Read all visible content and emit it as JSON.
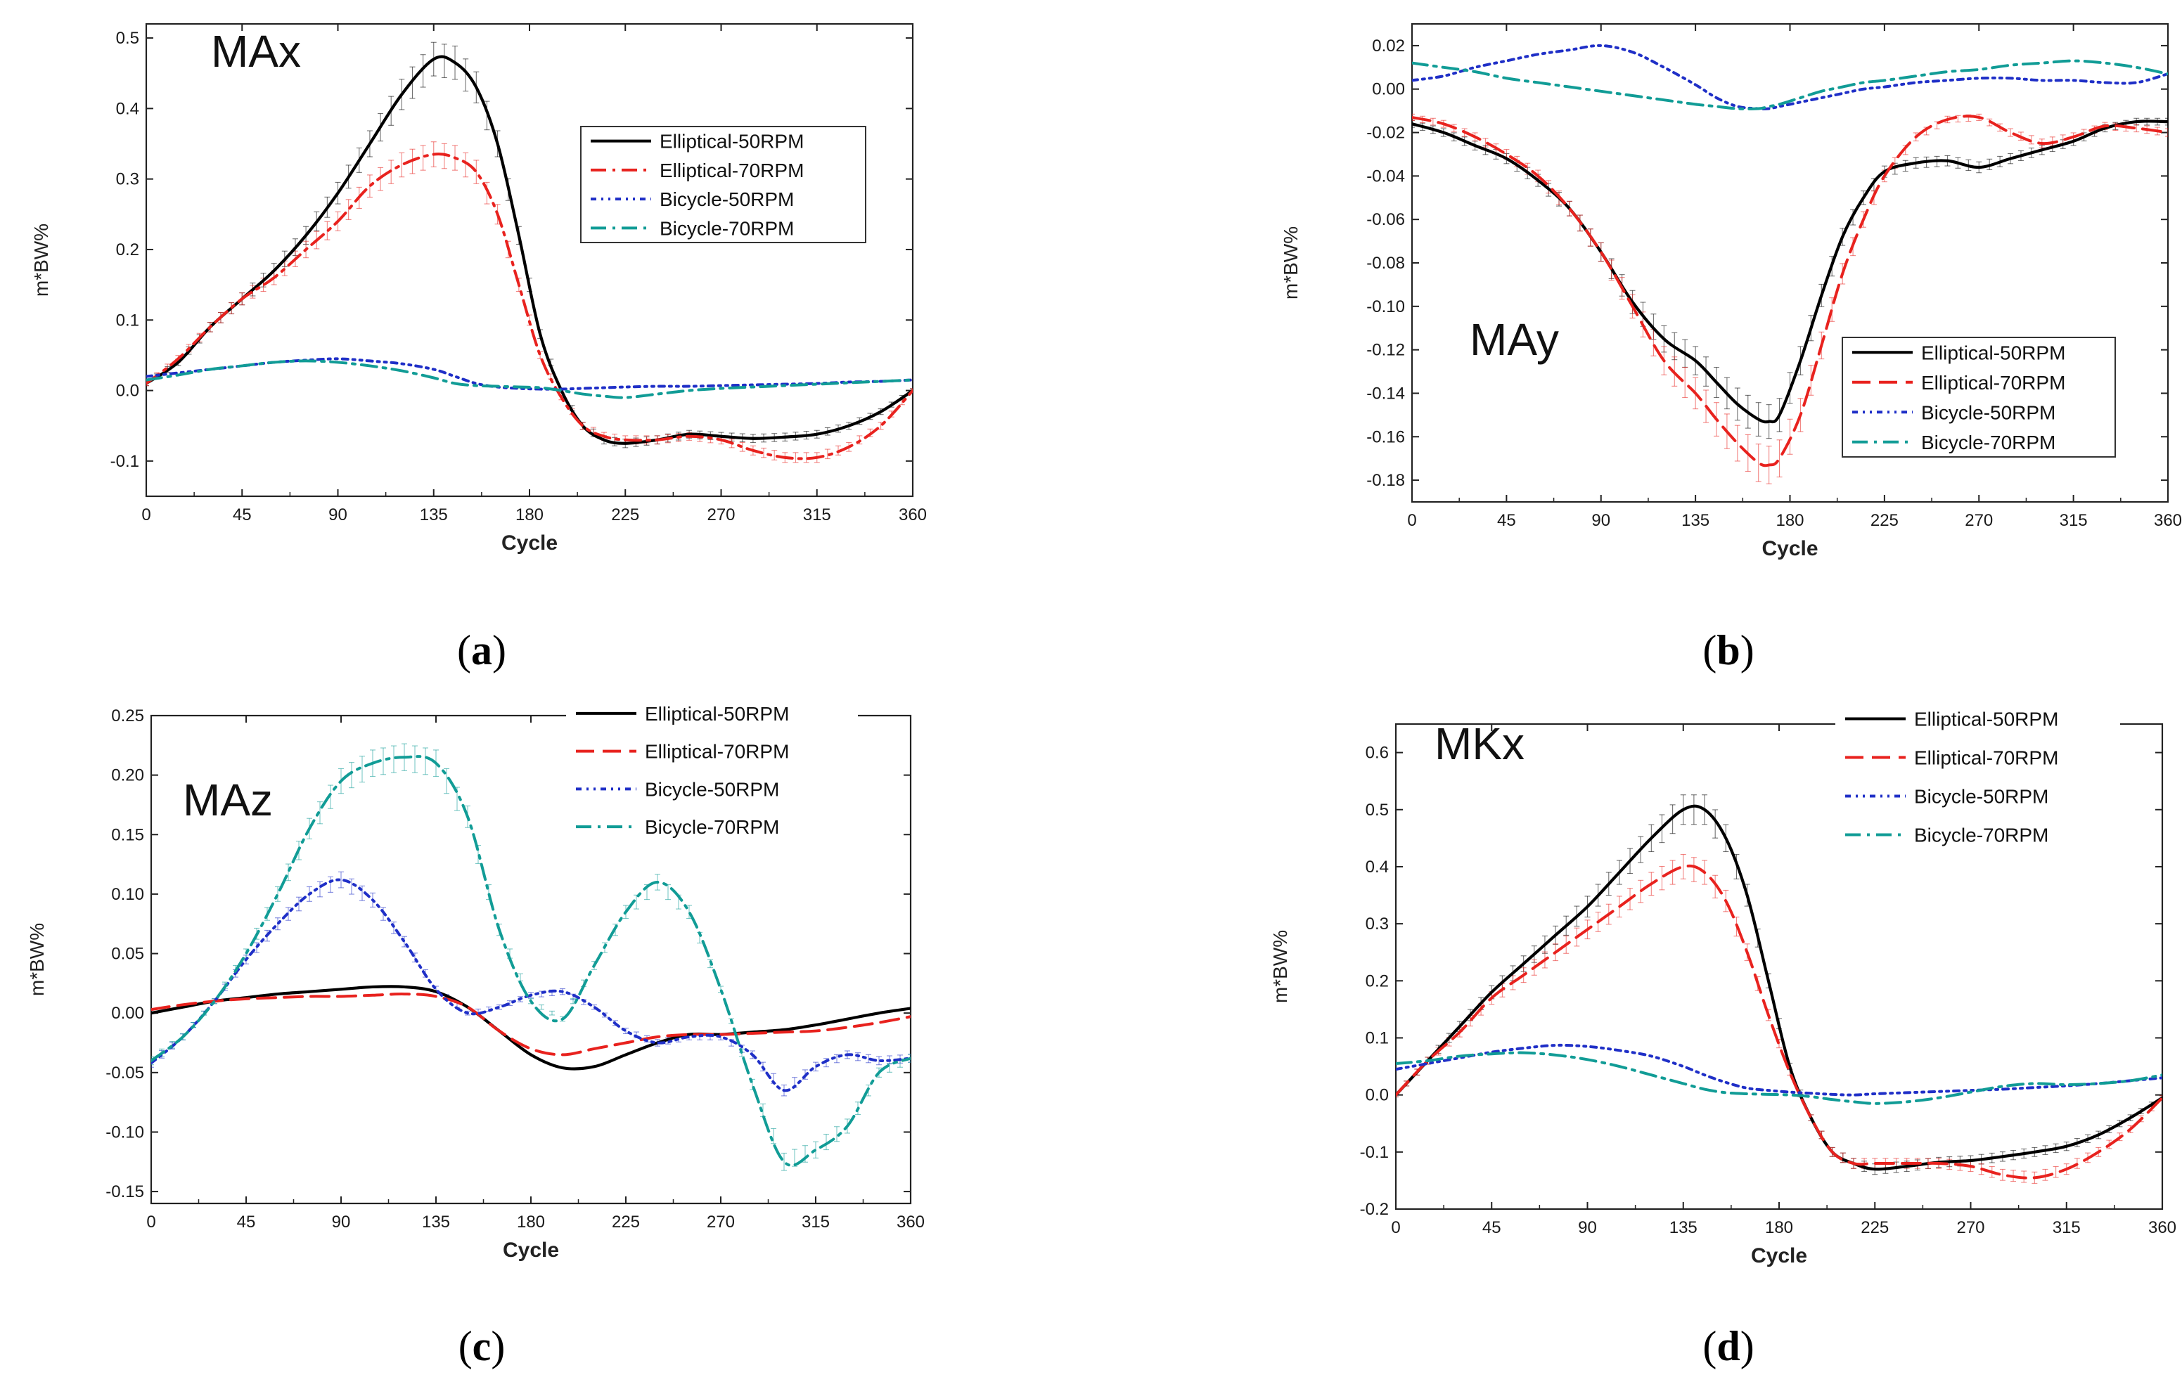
{
  "chart_data": [
    {
      "type": "line",
      "title": "MAx",
      "caption": "a",
      "xlabel": "Cycle",
      "ylabel": "m*BW%",
      "xlim": [
        0,
        360
      ],
      "ylim": [
        -0.15,
        0.52
      ],
      "xticks": [
        0,
        45,
        90,
        135,
        180,
        225,
        270,
        315,
        360
      ],
      "yticks": [
        -0.1,
        0.0,
        0.1,
        0.2,
        0.3,
        0.4,
        0.5
      ],
      "ytick_labels": [
        "-0.1",
        "0.0",
        "0.1",
        "0.2",
        "0.3",
        "0.4",
        "0.5"
      ],
      "legend_position": "right",
      "x": [
        0,
        15,
        30,
        45,
        60,
        75,
        90,
        105,
        120,
        135,
        145,
        155,
        165,
        175,
        185,
        195,
        205,
        215,
        225,
        240,
        255,
        270,
        285,
        300,
        315,
        330,
        345,
        360
      ],
      "series": [
        {
          "name": "Elliptical-50RPM",
          "color": "#000000",
          "style": "solid",
          "errorbars": true,
          "values": [
            0.01,
            0.04,
            0.09,
            0.13,
            0.17,
            0.22,
            0.28,
            0.35,
            0.42,
            0.47,
            0.465,
            0.43,
            0.35,
            0.22,
            0.08,
            0.0,
            -0.05,
            -0.07,
            -0.075,
            -0.07,
            -0.062,
            -0.065,
            -0.068,
            -0.066,
            -0.062,
            -0.05,
            -0.03,
            0.0
          ]
        },
        {
          "name": "Elliptical-70RPM",
          "color": "#e8221e",
          "style": "dashdot",
          "errorbars": true,
          "values": [
            0.01,
            0.045,
            0.09,
            0.13,
            0.16,
            0.2,
            0.24,
            0.29,
            0.32,
            0.335,
            0.33,
            0.31,
            0.25,
            0.15,
            0.05,
            -0.01,
            -0.05,
            -0.065,
            -0.07,
            -0.07,
            -0.065,
            -0.07,
            -0.085,
            -0.095,
            -0.095,
            -0.08,
            -0.05,
            0.0
          ]
        },
        {
          "name": "Bicycle-50RPM",
          "color": "#1f2fc7",
          "style": "dashdotdot",
          "errorbars": false,
          "values": [
            0.02,
            0.025,
            0.03,
            0.035,
            0.04,
            0.043,
            0.045,
            0.042,
            0.038,
            0.03,
            0.02,
            0.01,
            0.005,
            0.003,
            0.002,
            0.002,
            0.003,
            0.004,
            0.005,
            0.006,
            0.006,
            0.007,
            0.008,
            0.009,
            0.01,
            0.012,
            0.013,
            0.015
          ]
        },
        {
          "name": "Bicycle-70RPM",
          "color": "#119c96",
          "style": "dashdot",
          "errorbars": false,
          "values": [
            0.015,
            0.022,
            0.03,
            0.035,
            0.04,
            0.042,
            0.04,
            0.035,
            0.028,
            0.018,
            0.01,
            0.007,
            0.006,
            0.005,
            0.004,
            0.0,
            -0.005,
            -0.008,
            -0.01,
            -0.005,
            0.0,
            0.003,
            0.005,
            0.007,
            0.009,
            0.011,
            0.013,
            0.015
          ]
        }
      ]
    },
    {
      "type": "line",
      "title": "MAy",
      "caption": "b",
      "xlabel": "Cycle",
      "ylabel": "m*BW%",
      "xlim": [
        0,
        360
      ],
      "ylim": [
        -0.19,
        0.03
      ],
      "xticks": [
        0,
        45,
        90,
        135,
        180,
        225,
        270,
        315,
        360
      ],
      "yticks": [
        -0.18,
        -0.16,
        -0.14,
        -0.12,
        -0.1,
        -0.08,
        -0.06,
        -0.04,
        -0.02,
        0.0,
        0.02
      ],
      "ytick_labels": [
        "-0.18",
        "-0.16",
        "-0.14",
        "-0.12",
        "-0.10",
        "-0.08",
        "-0.06",
        "-0.04",
        "-0.02",
        "0.00",
        "0.02"
      ],
      "legend_position": "bottom-right",
      "x": [
        0,
        15,
        30,
        45,
        60,
        75,
        90,
        105,
        120,
        135,
        145,
        155,
        165,
        170,
        175,
        185,
        195,
        205,
        215,
        225,
        240,
        255,
        270,
        285,
        300,
        315,
        330,
        345,
        360
      ],
      "series": [
        {
          "name": "Elliptical-50RPM",
          "color": "#000000",
          "style": "solid",
          "errorbars": true,
          "values": [
            -0.016,
            -0.02,
            -0.026,
            -0.032,
            -0.042,
            -0.055,
            -0.075,
            -0.098,
            -0.115,
            -0.125,
            -0.135,
            -0.145,
            -0.152,
            -0.153,
            -0.15,
            -0.125,
            -0.095,
            -0.068,
            -0.05,
            -0.038,
            -0.034,
            -0.033,
            -0.036,
            -0.032,
            -0.028,
            -0.024,
            -0.018,
            -0.015,
            -0.015
          ]
        },
        {
          "name": "Elliptical-70RPM",
          "color": "#e8221e",
          "style": "dashed",
          "errorbars": true,
          "values": [
            -0.013,
            -0.016,
            -0.022,
            -0.03,
            -0.04,
            -0.055,
            -0.075,
            -0.1,
            -0.125,
            -0.14,
            -0.152,
            -0.163,
            -0.172,
            -0.173,
            -0.17,
            -0.15,
            -0.118,
            -0.085,
            -0.06,
            -0.04,
            -0.022,
            -0.014,
            -0.013,
            -0.02,
            -0.025,
            -0.022,
            -0.017,
            -0.018,
            -0.02
          ]
        },
        {
          "name": "Bicycle-50RPM",
          "color": "#1f2fc7",
          "style": "dashdotdot",
          "errorbars": false,
          "values": [
            0.004,
            0.006,
            0.01,
            0.013,
            0.016,
            0.018,
            0.02,
            0.017,
            0.01,
            0.002,
            -0.004,
            -0.008,
            -0.009,
            -0.009,
            -0.008,
            -0.006,
            -0.004,
            -0.002,
            0.0,
            0.001,
            0.003,
            0.004,
            0.005,
            0.005,
            0.004,
            0.004,
            0.003,
            0.003,
            0.007
          ]
        },
        {
          "name": "Bicycle-70RPM",
          "color": "#119c96",
          "style": "dashdot",
          "errorbars": false,
          "values": [
            0.012,
            0.01,
            0.008,
            0.005,
            0.003,
            0.001,
            -0.001,
            -0.003,
            -0.005,
            -0.007,
            -0.008,
            -0.009,
            -0.009,
            -0.008,
            -0.007,
            -0.004,
            -0.001,
            0.001,
            0.003,
            0.004,
            0.006,
            0.008,
            0.009,
            0.011,
            0.012,
            0.013,
            0.012,
            0.01,
            0.007
          ]
        }
      ]
    },
    {
      "type": "line",
      "title": "MAz",
      "caption": "c",
      "xlabel": "Cycle",
      "ylabel": "m*BW%",
      "xlim": [
        0,
        360
      ],
      "ylim": [
        -0.16,
        0.25
      ],
      "xticks": [
        0,
        45,
        90,
        135,
        180,
        225,
        270,
        315,
        360
      ],
      "yticks": [
        -0.15,
        -0.1,
        -0.05,
        0.0,
        0.05,
        0.1,
        0.15,
        0.2,
        0.25
      ],
      "ytick_labels": [
        "-0.15",
        "-0.10",
        "-0.05",
        "0.00",
        "0.05",
        "0.10",
        "0.15",
        "0.20",
        "0.25"
      ],
      "legend_position": "top-right",
      "x": [
        0,
        15,
        30,
        45,
        60,
        75,
        90,
        105,
        120,
        135,
        150,
        165,
        180,
        195,
        210,
        225,
        240,
        255,
        270,
        285,
        300,
        315,
        330,
        345,
        360
      ],
      "series": [
        {
          "name": "Elliptical-50RPM",
          "color": "#000000",
          "style": "solid",
          "errorbars": false,
          "values": [
            0.0,
            0.005,
            0.01,
            0.013,
            0.016,
            0.018,
            0.02,
            0.022,
            0.022,
            0.018,
            0.005,
            -0.015,
            -0.035,
            -0.046,
            -0.045,
            -0.035,
            -0.025,
            -0.018,
            -0.018,
            -0.016,
            -0.014,
            -0.01,
            -0.005,
            0.0,
            0.004
          ]
        },
        {
          "name": "Elliptical-70RPM",
          "color": "#e8221e",
          "style": "dashed",
          "errorbars": false,
          "values": [
            0.003,
            0.007,
            0.01,
            0.012,
            0.013,
            0.014,
            0.014,
            0.015,
            0.016,
            0.014,
            0.005,
            -0.015,
            -0.03,
            -0.035,
            -0.03,
            -0.025,
            -0.02,
            -0.018,
            -0.018,
            -0.017,
            -0.016,
            -0.015,
            -0.012,
            -0.008,
            -0.003
          ]
        },
        {
          "name": "Bicycle-50RPM",
          "color": "#1f2fc7",
          "style": "dashdotdot",
          "errorbars": true,
          "values": [
            -0.042,
            -0.02,
            0.01,
            0.045,
            0.075,
            0.1,
            0.112,
            0.095,
            0.06,
            0.02,
            0.0,
            0.005,
            0.015,
            0.018,
            0.005,
            -0.015,
            -0.025,
            -0.02,
            -0.02,
            -0.035,
            -0.065,
            -0.045,
            -0.035,
            -0.04,
            -0.038
          ]
        },
        {
          "name": "Bicycle-70RPM",
          "color": "#119c96",
          "style": "dashdot",
          "errorbars": true,
          "values": [
            -0.04,
            -0.02,
            0.01,
            0.05,
            0.1,
            0.155,
            0.195,
            0.21,
            0.215,
            0.21,
            0.165,
            0.07,
            0.01,
            -0.005,
            0.04,
            0.085,
            0.11,
            0.085,
            0.02,
            -0.06,
            -0.125,
            -0.115,
            -0.095,
            -0.05,
            -0.038
          ]
        }
      ]
    },
    {
      "type": "line",
      "title": "MKx",
      "caption": "d",
      "xlabel": "Cycle",
      "ylabel": "m*BW%",
      "xlim": [
        0,
        360
      ],
      "ylim": [
        -0.2,
        0.65
      ],
      "xticks": [
        0,
        45,
        90,
        135,
        180,
        225,
        270,
        315,
        360
      ],
      "yticks": [
        -0.2,
        -0.1,
        0.0,
        0.1,
        0.2,
        0.3,
        0.4,
        0.5,
        0.6
      ],
      "ytick_labels": [
        "-0.2",
        "-0.1",
        "0.0",
        "0.1",
        "0.2",
        "0.3",
        "0.4",
        "0.5",
        "0.6"
      ],
      "legend_position": "top-right",
      "x": [
        0,
        15,
        30,
        45,
        60,
        75,
        90,
        105,
        120,
        135,
        145,
        155,
        165,
        175,
        185,
        195,
        205,
        215,
        225,
        240,
        255,
        270,
        285,
        300,
        315,
        330,
        345,
        360
      ],
      "series": [
        {
          "name": "Elliptical-50RPM",
          "color": "#000000",
          "style": "solid",
          "errorbars": true,
          "values": [
            0.0,
            0.06,
            0.12,
            0.18,
            0.23,
            0.28,
            0.33,
            0.39,
            0.45,
            0.5,
            0.5,
            0.45,
            0.35,
            0.2,
            0.05,
            -0.04,
            -0.1,
            -0.12,
            -0.13,
            -0.125,
            -0.118,
            -0.115,
            -0.108,
            -0.1,
            -0.09,
            -0.07,
            -0.04,
            -0.005
          ]
        },
        {
          "name": "Elliptical-70RPM",
          "color": "#e8221e",
          "style": "dashed",
          "errorbars": true,
          "values": [
            0.0,
            0.06,
            0.11,
            0.17,
            0.21,
            0.25,
            0.29,
            0.33,
            0.37,
            0.4,
            0.39,
            0.34,
            0.25,
            0.14,
            0.04,
            -0.04,
            -0.1,
            -0.12,
            -0.12,
            -0.12,
            -0.12,
            -0.125,
            -0.14,
            -0.145,
            -0.13,
            -0.1,
            -0.06,
            -0.005
          ]
        },
        {
          "name": "Bicycle-50RPM",
          "color": "#1f2fc7",
          "style": "dashdotdot",
          "errorbars": false,
          "values": [
            0.045,
            0.055,
            0.065,
            0.075,
            0.082,
            0.087,
            0.085,
            0.078,
            0.068,
            0.05,
            0.035,
            0.022,
            0.012,
            0.008,
            0.005,
            0.003,
            0.001,
            0.0,
            0.002,
            0.004,
            0.006,
            0.008,
            0.01,
            0.013,
            0.016,
            0.02,
            0.025,
            0.03
          ]
        },
        {
          "name": "Bicycle-70RPM",
          "color": "#119c96",
          "style": "dashdot",
          "errorbars": false,
          "values": [
            0.055,
            0.06,
            0.068,
            0.072,
            0.074,
            0.07,
            0.062,
            0.05,
            0.035,
            0.02,
            0.01,
            0.004,
            0.002,
            0.001,
            0.0,
            -0.003,
            -0.008,
            -0.012,
            -0.015,
            -0.012,
            -0.005,
            0.005,
            0.015,
            0.02,
            0.018,
            0.02,
            0.025,
            0.035
          ]
        }
      ]
    }
  ]
}
